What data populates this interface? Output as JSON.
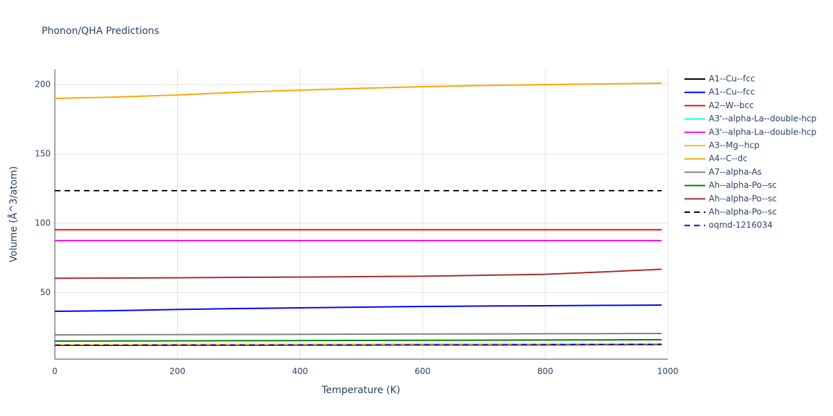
{
  "chart_data": {
    "type": "line",
    "title": "Phonon/QHA Predictions",
    "x_label": "Temperature (K)",
    "y_label": "Volume (Å^3/atom)",
    "x": [
      0,
      100,
      200,
      300,
      400,
      500,
      600,
      700,
      800,
      900,
      990
    ],
    "xlim": [
      0,
      1000
    ],
    "xticks": [
      0,
      200,
      400,
      600,
      800,
      1000
    ],
    "ylim": [
      2,
      211
    ],
    "yticks": [
      50,
      100,
      150,
      200
    ],
    "grid": true,
    "legend": "right",
    "series": [
      {
        "name": "A1--Cu--fcc",
        "color": "#000000",
        "dash": "solid",
        "values": [
          12,
          12,
          12.1,
          12.1,
          12.2,
          12.2,
          12.3,
          12.3,
          12.4,
          12.5,
          12.6
        ]
      },
      {
        "name": "A1--Cu--fcc",
        "color": "#0000ff",
        "dash": "solid",
        "values": [
          36.5,
          37,
          37.8,
          38.5,
          39,
          39.5,
          40,
          40.3,
          40.5,
          40.8,
          41
        ]
      },
      {
        "name": "A2--W--bcc",
        "color": "#ff0000",
        "dash": "solid",
        "values": [
          95.3,
          95.3,
          95.3,
          95.3,
          95.3,
          95.3,
          95.3,
          95.3,
          95.3,
          95.3,
          95.3
        ]
      },
      {
        "name": "A3'--alpha-La--double-hcp",
        "color": "#00ffff",
        "dash": "solid",
        "values": [
          87.5,
          87.5,
          87.5,
          87.5,
          87.5,
          87.5,
          87.5,
          87.5,
          87.5,
          87.5,
          87.5
        ]
      },
      {
        "name": "A3'--alpha-La--double-hcp",
        "color": "#ff00ff",
        "dash": "solid",
        "values": [
          87.5,
          87.5,
          87.5,
          87.5,
          87.5,
          87.5,
          87.5,
          87.5,
          87.5,
          87.5,
          87.5
        ]
      },
      {
        "name": "A3--Mg--hcp",
        "color": "#f0c020",
        "dash": "solid",
        "values": [
          12.5,
          12.5,
          12.6,
          12.6,
          12.7,
          12.7,
          12.8,
          12.8,
          12.9,
          13,
          13.1
        ]
      },
      {
        "name": "A4--C--dc",
        "color": "#ffa500",
        "dash": "solid",
        "values": [
          190,
          191,
          192.5,
          194.5,
          196,
          197.3,
          198.5,
          199.3,
          200,
          200.5,
          201
        ]
      },
      {
        "name": "A7--alpha-As",
        "color": "#808080",
        "dash": "solid",
        "values": [
          19.5,
          19.6,
          19.7,
          19.8,
          19.9,
          20,
          20.1,
          20.2,
          20.3,
          20.4,
          20.5
        ]
      },
      {
        "name": "Ah--alpha-Po--sc",
        "color": "#008000",
        "dash": "solid",
        "values": [
          15,
          15.1,
          15.2,
          15.3,
          15.4,
          15.5,
          15.6,
          15.7,
          15.8,
          15.9,
          16
        ]
      },
      {
        "name": "Ah--alpha-Po--sc",
        "color": "#a52a2a",
        "dash": "solid",
        "values": [
          60.3,
          60.5,
          60.7,
          61,
          61.2,
          61.5,
          61.8,
          62.5,
          63.2,
          65,
          66.8
        ]
      },
      {
        "name": "Ah--alpha-Po--sc",
        "color": "#000000",
        "dash": "dash",
        "values": [
          123.5,
          123.5,
          123.5,
          123.5,
          123.5,
          123.5,
          123.5,
          123.5,
          123.5,
          123.5,
          123.5
        ]
      },
      {
        "name": "oqmd-1216034",
        "color": "#0000ff",
        "dash": "dash",
        "values": [
          12,
          12,
          12.1,
          12.1,
          12.2,
          12.2,
          12.3,
          12.3,
          12.4,
          12.5,
          12.6
        ]
      }
    ]
  }
}
